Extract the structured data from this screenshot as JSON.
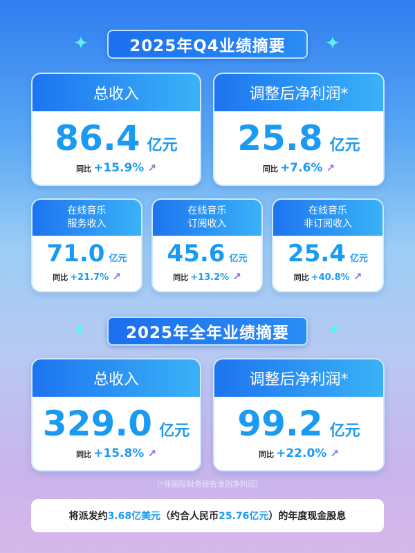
{
  "q4": {
    "title": "2025年Q4业绩摘要",
    "main": [
      {
        "label": "总收入",
        "value": "86.4",
        "unit": "亿元",
        "yoy_label": "同比",
        "yoy": "+15.9%"
      },
      {
        "label": "调整后净利润*",
        "value": "25.8",
        "unit": "亿元",
        "yoy_label": "同比",
        "yoy": "+7.6%"
      }
    ],
    "sub": [
      {
        "label1": "在线音乐",
        "label2": "服务收入",
        "value": "71.0",
        "unit": "亿元",
        "yoy_label": "同比",
        "yoy": "+21.7%"
      },
      {
        "label1": "在线音乐",
        "label2": "订阅收入",
        "value": "45.6",
        "unit": "亿元",
        "yoy_label": "同比",
        "yoy": "+13.2%"
      },
      {
        "label1": "在线音乐",
        "label2": "非订阅收入",
        "value": "25.4",
        "unit": "亿元",
        "yoy_label": "同比",
        "yoy": "+40.8%"
      }
    ]
  },
  "fy": {
    "title": "2025年全年业绩摘要",
    "main": [
      {
        "label": "总收入",
        "value": "329.0",
        "unit": "亿元",
        "yoy_label": "同比",
        "yoy": "+15.8%"
      },
      {
        "label": "调整后净利润*",
        "value": "99.2",
        "unit": "亿元",
        "yoy_label": "同比",
        "yoy": "+22.0%"
      }
    ]
  },
  "footnote": "（*非国际财务报告准则净利润）",
  "dividend": {
    "p1": "将派发约",
    "usd": "3.68亿美元",
    "p2": "（约合人民币",
    "rmb": "25.76亿元",
    "p3": "）的年度现金股息"
  },
  "icons": {
    "sparkle": "sparkle-icon",
    "trend": "trend-up-icon"
  },
  "colors": {
    "accent": "#1a9af2",
    "header": "#1d74f0"
  }
}
